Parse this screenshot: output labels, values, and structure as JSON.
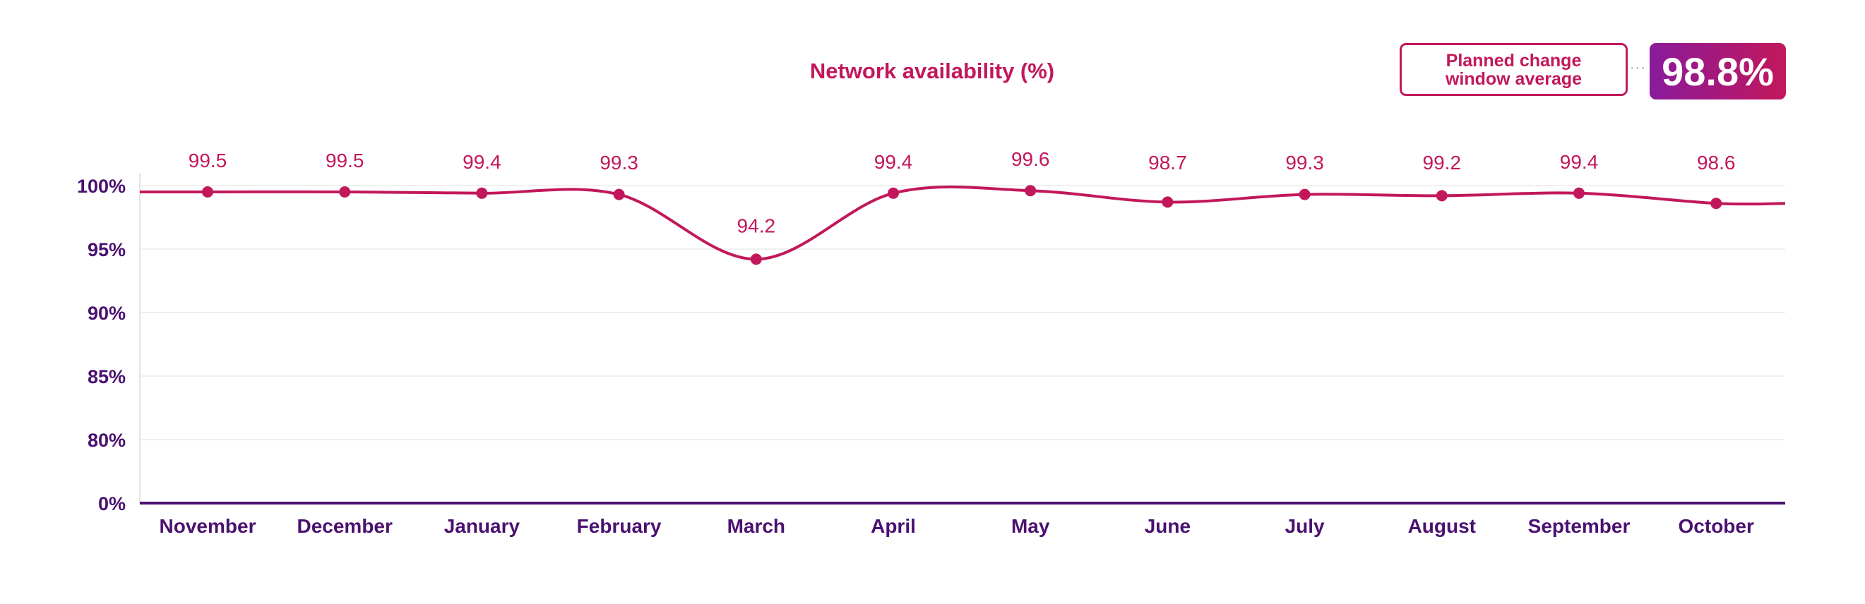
{
  "summary": {
    "label_line1": "Planned change",
    "label_line2": "window average",
    "connector": "···",
    "value": "98.8%"
  },
  "colors": {
    "line": "#c2185b",
    "axis": "#4a1170",
    "grid": "#ececec",
    "tick_text": "#4a1170",
    "title": "#c2185b"
  },
  "chart_data": {
    "type": "line",
    "title": "Network availability (%)",
    "xlabel": "",
    "ylabel": "",
    "categories": [
      "November",
      "December",
      "January",
      "February",
      "March",
      "April",
      "May",
      "June",
      "July",
      "August",
      "September",
      "October"
    ],
    "series": [
      {
        "name": "Network availability (%)",
        "values": [
          99.5,
          99.5,
          99.4,
          99.3,
          94.2,
          99.4,
          99.6,
          98.7,
          99.3,
          99.2,
          99.4,
          98.6
        ],
        "labels": [
          "99.5",
          "99.5",
          "99.4",
          "99.3",
          "94.2",
          "99.4",
          "99.6",
          "98.7",
          "99.3",
          "99.2",
          "99.4",
          "98.6"
        ]
      }
    ],
    "yticks": [
      {
        "value": 0,
        "label": "0%"
      },
      {
        "value": 80,
        "label": "80%"
      },
      {
        "value": 85,
        "label": "85%"
      },
      {
        "value": 90,
        "label": "90%"
      },
      {
        "value": 95,
        "label": "95%"
      },
      {
        "value": 100,
        "label": "100%"
      }
    ],
    "ylim": [
      0,
      100
    ],
    "y_axis_break": "broken scale between 0 and 80",
    "grid": true,
    "legend": "none"
  }
}
